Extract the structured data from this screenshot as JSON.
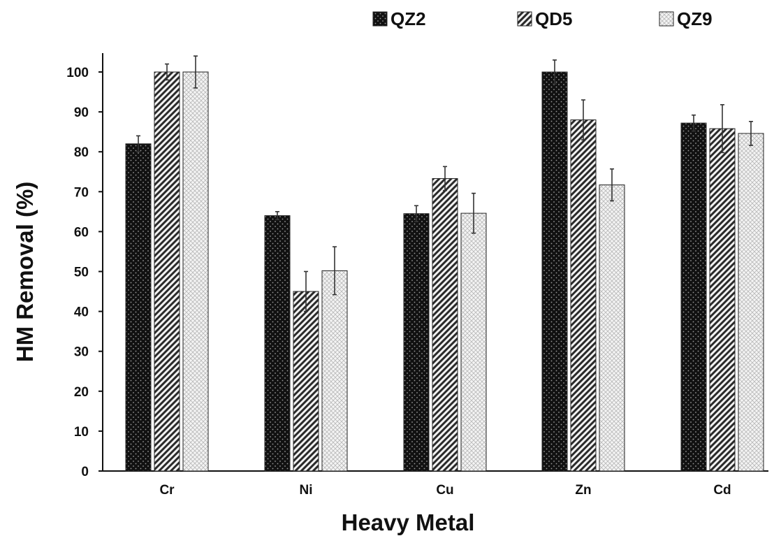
{
  "chart_data": {
    "type": "bar",
    "title": "",
    "xlabel": "Heavy Metal",
    "ylabel": "HM Removal (%)",
    "ylim": [
      0,
      100
    ],
    "yticks": [
      "0",
      "10",
      "20",
      "30",
      "40",
      "50",
      "60",
      "70",
      "80",
      "90",
      "100"
    ],
    "categories": [
      "Cr",
      "Ni",
      "Cu",
      "Zn",
      "Cd"
    ],
    "series": [
      {
        "name": "QZ2",
        "pattern": "dark-dots",
        "values": [
          82,
          64,
          64.5,
          100,
          87.2
        ],
        "errors": [
          2,
          1,
          2,
          3,
          2
        ]
      },
      {
        "name": "QD5",
        "pattern": "diagonal-hatch",
        "values": [
          100,
          45,
          73.3,
          88,
          85.8
        ],
        "errors": [
          2,
          5,
          3,
          5,
          6
        ]
      },
      {
        "name": "QZ9",
        "pattern": "light-crosshatch",
        "values": [
          100,
          50.2,
          64.6,
          71.7,
          84.6
        ],
        "errors": [
          4,
          6,
          5,
          4,
          3
        ]
      }
    ],
    "grid": false,
    "legend_position": "top-right",
    "colors": {
      "QZ2": "#111111",
      "QD5": "#4a4a4a",
      "QZ9": "#e6e6e6"
    }
  }
}
